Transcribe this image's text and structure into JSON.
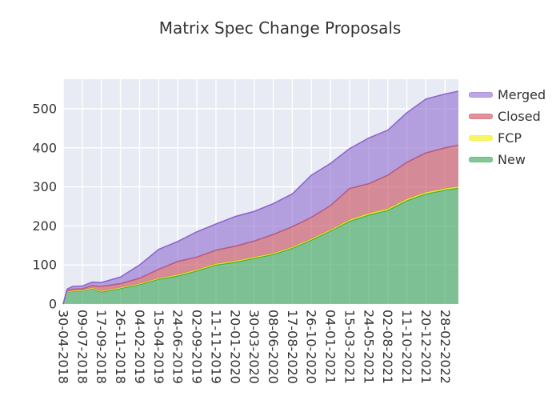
{
  "title": "Matrix Spec Change Proposals",
  "chart_data": {
    "type": "area",
    "stacked": true,
    "title": "Matrix Spec Change Proposals",
    "background": {
      "figure": "#ffffff",
      "plot": "#e9ebf4",
      "grid": "#ffffff"
    },
    "ylim": [
      0,
      576
    ],
    "y_ticks": [
      0,
      100,
      200,
      300,
      400,
      500
    ],
    "x_tick_labels": [
      "30-04-2018",
      "09-07-2018",
      "17-09-2018",
      "26-11-2018",
      "04-02-2019",
      "15-04-2019",
      "24-06-2019",
      "02-09-2019",
      "11-11-2019",
      "20-01-2020",
      "30-03-2020",
      "08-06-2020",
      "17-08-2020",
      "26-10-2020",
      "04-01-2021",
      "15-03-2021",
      "24-05-2021",
      "02-08-2021",
      "11-10-2021",
      "20-12-2021",
      "28-02-2022"
    ],
    "x": [
      "30-04-2018",
      "14-05-2018",
      "04-06-2018",
      "09-07-2018",
      "13-08-2018",
      "17-09-2018",
      "26-11-2018",
      "04-02-2019",
      "15-04-2019",
      "24-06-2019",
      "02-09-2019",
      "11-11-2019",
      "20-01-2020",
      "30-03-2020",
      "08-06-2020",
      "17-08-2020",
      "26-10-2020",
      "04-01-2021",
      "15-03-2021",
      "24-05-2021",
      "02-08-2021",
      "11-10-2021",
      "20-12-2021",
      "28-02-2022",
      "18-04-2022"
    ],
    "x_positions": [
      0,
      0.2,
      0.5,
      1,
      1.5,
      2,
      3,
      4,
      5,
      6,
      7,
      8,
      9,
      10,
      11,
      12,
      13,
      14,
      15,
      16,
      17,
      18,
      19,
      20,
      20.7
    ],
    "series": [
      {
        "name": "New",
        "color": "#33a353",
        "fill": "rgba(51,163,83,0.6)",
        "values": [
          0,
          30,
          33,
          34,
          40,
          31,
          40,
          50,
          64,
          72,
          85,
          100,
          107,
          117,
          127,
          143,
          164,
          187,
          212,
          228,
          240,
          265,
          282,
          292,
          297
        ]
      },
      {
        "name": "FCP",
        "color": "#e8e838",
        "fill": "rgba(240,240,0,0.6)",
        "values": [
          0,
          1,
          1,
          1,
          1,
          2,
          2,
          2,
          2,
          3,
          3,
          3,
          3,
          3,
          3,
          3,
          3,
          3,
          4,
          4,
          4,
          4,
          4,
          4,
          4
        ]
      },
      {
        "name": "Closed",
        "color": "#c85763",
        "fill": "rgba(200,74,88,0.6)",
        "values": [
          0,
          3,
          4,
          4,
          6,
          12,
          10,
          14,
          23,
          34,
          32,
          35,
          38,
          41,
          48,
          52,
          55,
          62,
          80,
          76,
          86,
          94,
          101,
          104,
          106
        ]
      },
      {
        "name": "Merged",
        "color": "#8b67cf",
        "fill": "rgba(139,103,207,0.58)",
        "values": [
          0,
          4,
          7,
          7,
          9,
          10,
          17,
          34,
          51,
          51,
          65,
          67,
          76,
          76,
          79,
          84,
          108,
          108,
          102,
          117,
          115,
          127,
          138,
          138,
          138
        ]
      }
    ],
    "series_note": "values are per-band counts; bands stack bottom-to-top in listed order",
    "legend": {
      "position": "right-outside",
      "entries": [
        "Merged",
        "Closed",
        "FCP",
        "New"
      ]
    }
  }
}
